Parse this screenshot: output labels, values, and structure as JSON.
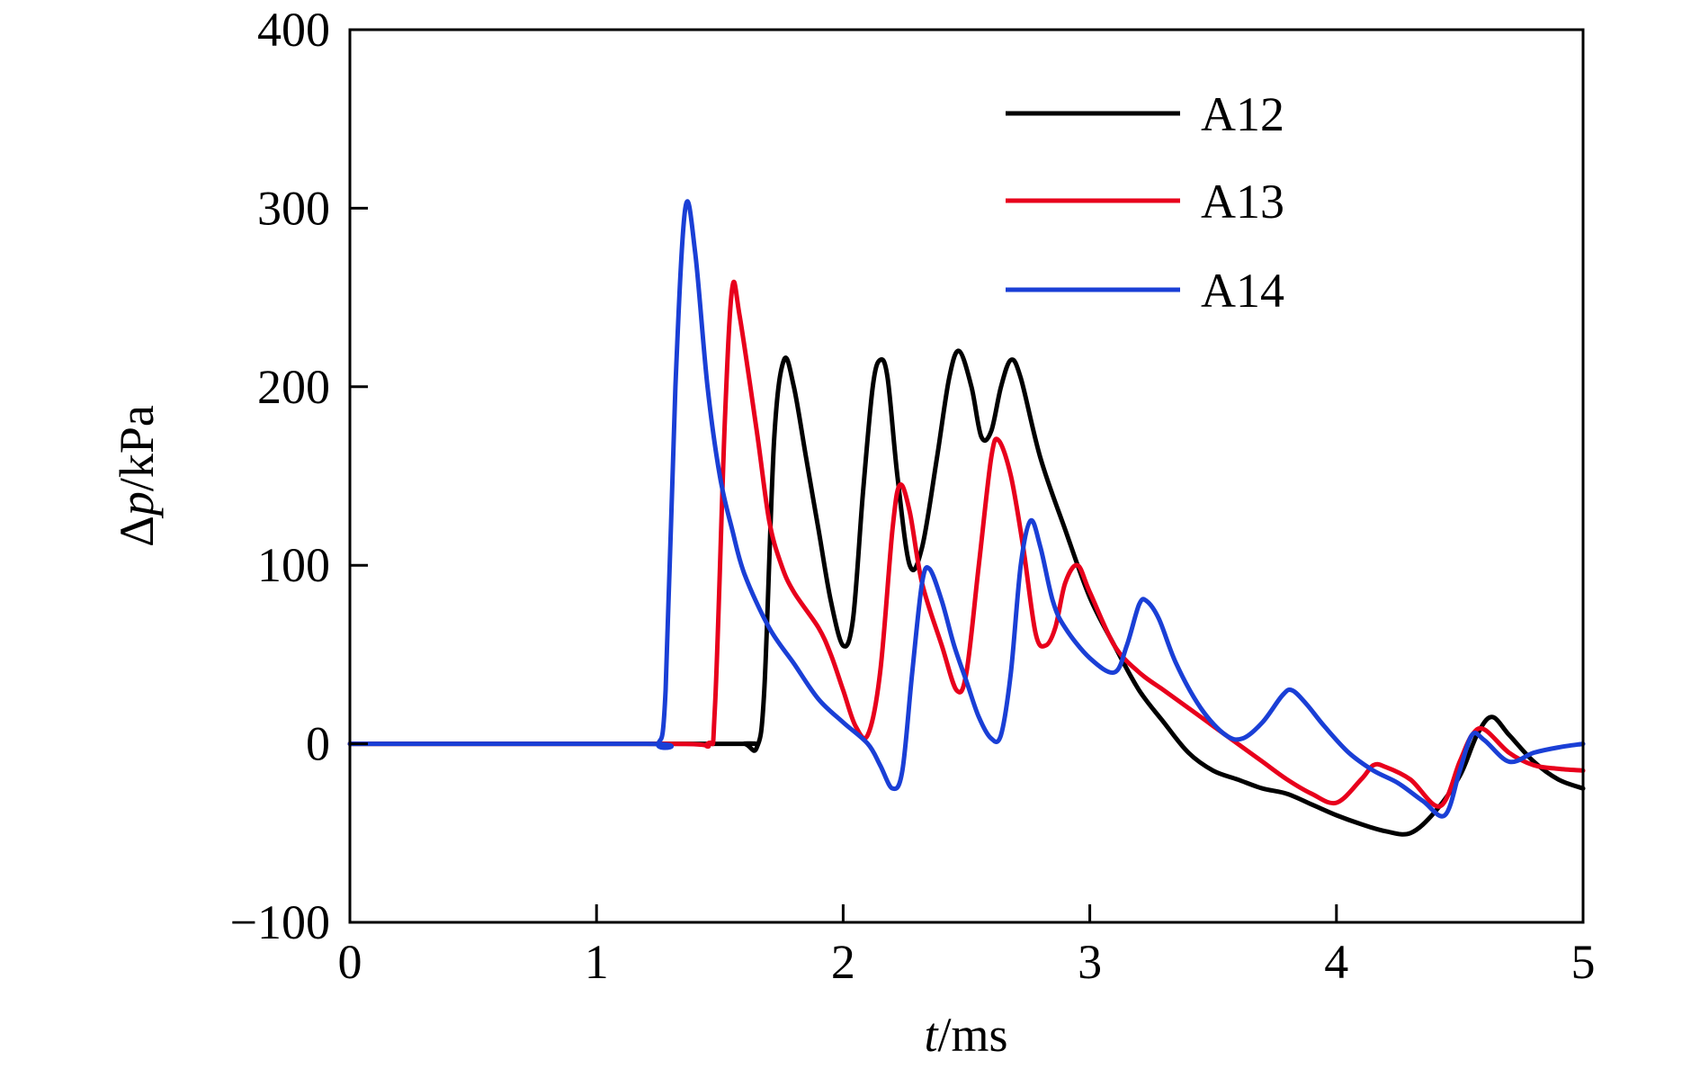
{
  "chart_data": {
    "type": "line",
    "xlabel_italic": "t",
    "xlabel_rest": "/ms",
    "ylabel_prefix": "Δ",
    "ylabel_italic": "p",
    "ylabel_rest": "/kPa",
    "xlim": [
      0,
      5
    ],
    "ylim": [
      -100,
      400
    ],
    "xticks": [
      0,
      1,
      2,
      3,
      4,
      5
    ],
    "yticks": [
      -100,
      0,
      100,
      200,
      300,
      400
    ],
    "xtick_labels": [
      "0",
      "1",
      "2",
      "3",
      "4",
      "5"
    ],
    "ytick_labels": [
      "−100",
      "0",
      "100",
      "200",
      "300",
      "400"
    ],
    "grid": false,
    "legend_position": "top-right",
    "series": [
      {
        "name": "A12",
        "color": "#000000",
        "points": [
          [
            0,
            0
          ],
          [
            1.5,
            0
          ],
          [
            1.6,
            0
          ],
          [
            1.65,
            -2
          ],
          [
            1.68,
            30
          ],
          [
            1.72,
            170
          ],
          [
            1.76,
            215
          ],
          [
            1.8,
            200
          ],
          [
            1.85,
            160
          ],
          [
            1.9,
            120
          ],
          [
            1.95,
            80
          ],
          [
            2.0,
            55
          ],
          [
            2.04,
            70
          ],
          [
            2.08,
            140
          ],
          [
            2.12,
            200
          ],
          [
            2.15,
            215
          ],
          [
            2.18,
            205
          ],
          [
            2.22,
            150
          ],
          [
            2.27,
            100
          ],
          [
            2.32,
            110
          ],
          [
            2.38,
            160
          ],
          [
            2.43,
            205
          ],
          [
            2.47,
            220
          ],
          [
            2.52,
            200
          ],
          [
            2.56,
            172
          ],
          [
            2.6,
            175
          ],
          [
            2.64,
            200
          ],
          [
            2.68,
            215
          ],
          [
            2.72,
            205
          ],
          [
            2.8,
            160
          ],
          [
            2.9,
            120
          ],
          [
            3.0,
            82
          ],
          [
            3.1,
            55
          ],
          [
            3.2,
            30
          ],
          [
            3.3,
            12
          ],
          [
            3.4,
            -5
          ],
          [
            3.5,
            -15
          ],
          [
            3.6,
            -20
          ],
          [
            3.7,
            -25
          ],
          [
            3.8,
            -28
          ],
          [
            3.9,
            -34
          ],
          [
            4.0,
            -40
          ],
          [
            4.1,
            -45
          ],
          [
            4.2,
            -49
          ],
          [
            4.3,
            -50
          ],
          [
            4.4,
            -38
          ],
          [
            4.5,
            -18
          ],
          [
            4.57,
            5
          ],
          [
            4.63,
            15
          ],
          [
            4.7,
            5
          ],
          [
            4.8,
            -10
          ],
          [
            4.9,
            -20
          ],
          [
            5.0,
            -25
          ]
        ]
      },
      {
        "name": "A13",
        "color": "#e8001c",
        "points": [
          [
            0,
            0
          ],
          [
            1.3,
            0
          ],
          [
            1.45,
            0
          ],
          [
            1.48,
            20
          ],
          [
            1.52,
            180
          ],
          [
            1.55,
            255
          ],
          [
            1.58,
            240
          ],
          [
            1.65,
            175
          ],
          [
            1.7,
            125
          ],
          [
            1.75,
            100
          ],
          [
            1.8,
            85
          ],
          [
            1.9,
            65
          ],
          [
            1.95,
            50
          ],
          [
            2.0,
            30
          ],
          [
            2.05,
            10
          ],
          [
            2.1,
            5
          ],
          [
            2.15,
            40
          ],
          [
            2.2,
            120
          ],
          [
            2.23,
            145
          ],
          [
            2.27,
            130
          ],
          [
            2.32,
            90
          ],
          [
            2.4,
            55
          ],
          [
            2.46,
            30
          ],
          [
            2.5,
            40
          ],
          [
            2.55,
            100
          ],
          [
            2.6,
            160
          ],
          [
            2.63,
            170
          ],
          [
            2.68,
            150
          ],
          [
            2.73,
            110
          ],
          [
            2.78,
            62
          ],
          [
            2.82,
            55
          ],
          [
            2.86,
            65
          ],
          [
            2.9,
            90
          ],
          [
            2.95,
            100
          ],
          [
            3.0,
            85
          ],
          [
            3.1,
            55
          ],
          [
            3.2,
            40
          ],
          [
            3.3,
            30
          ],
          [
            3.4,
            20
          ],
          [
            3.5,
            10
          ],
          [
            3.6,
            0
          ],
          [
            3.7,
            -10
          ],
          [
            3.8,
            -20
          ],
          [
            3.9,
            -28
          ],
          [
            4.0,
            -33
          ],
          [
            4.1,
            -20
          ],
          [
            4.15,
            -12
          ],
          [
            4.2,
            -13
          ],
          [
            4.3,
            -20
          ],
          [
            4.42,
            -35
          ],
          [
            4.5,
            -10
          ],
          [
            4.55,
            5
          ],
          [
            4.6,
            8
          ],
          [
            4.7,
            -5
          ],
          [
            4.8,
            -12
          ],
          [
            4.9,
            -14
          ],
          [
            5.0,
            -15
          ]
        ]
      },
      {
        "name": "A14",
        "color": "#1a3fd6",
        "points": [
          [
            0,
            0
          ],
          [
            1.2,
            0
          ],
          [
            1.25,
            0
          ],
          [
            1.28,
            30
          ],
          [
            1.32,
            200
          ],
          [
            1.36,
            300
          ],
          [
            1.4,
            275
          ],
          [
            1.45,
            200
          ],
          [
            1.5,
            150
          ],
          [
            1.55,
            120
          ],
          [
            1.6,
            95
          ],
          [
            1.7,
            65
          ],
          [
            1.8,
            45
          ],
          [
            1.9,
            25
          ],
          [
            2.0,
            12
          ],
          [
            2.1,
            0
          ],
          [
            2.15,
            -12
          ],
          [
            2.2,
            -25
          ],
          [
            2.24,
            -15
          ],
          [
            2.28,
            40
          ],
          [
            2.32,
            90
          ],
          [
            2.35,
            98
          ],
          [
            2.4,
            80
          ],
          [
            2.45,
            55
          ],
          [
            2.5,
            35
          ],
          [
            2.55,
            15
          ],
          [
            2.6,
            3
          ],
          [
            2.64,
            5
          ],
          [
            2.68,
            40
          ],
          [
            2.72,
            100
          ],
          [
            2.76,
            125
          ],
          [
            2.8,
            110
          ],
          [
            2.85,
            80
          ],
          [
            2.9,
            65
          ],
          [
            3.0,
            48
          ],
          [
            3.1,
            40
          ],
          [
            3.15,
            55
          ],
          [
            3.2,
            78
          ],
          [
            3.23,
            80
          ],
          [
            3.28,
            70
          ],
          [
            3.35,
            45
          ],
          [
            3.45,
            20
          ],
          [
            3.55,
            5
          ],
          [
            3.62,
            3
          ],
          [
            3.7,
            12
          ],
          [
            3.78,
            27
          ],
          [
            3.82,
            30
          ],
          [
            3.88,
            22
          ],
          [
            3.95,
            10
          ],
          [
            4.05,
            -5
          ],
          [
            4.15,
            -15
          ],
          [
            4.25,
            -22
          ],
          [
            4.35,
            -32
          ],
          [
            4.44,
            -40
          ],
          [
            4.5,
            -15
          ],
          [
            4.55,
            5
          ],
          [
            4.6,
            2
          ],
          [
            4.7,
            -10
          ],
          [
            4.8,
            -5
          ],
          [
            4.9,
            -2
          ],
          [
            5.0,
            0
          ]
        ]
      }
    ]
  }
}
